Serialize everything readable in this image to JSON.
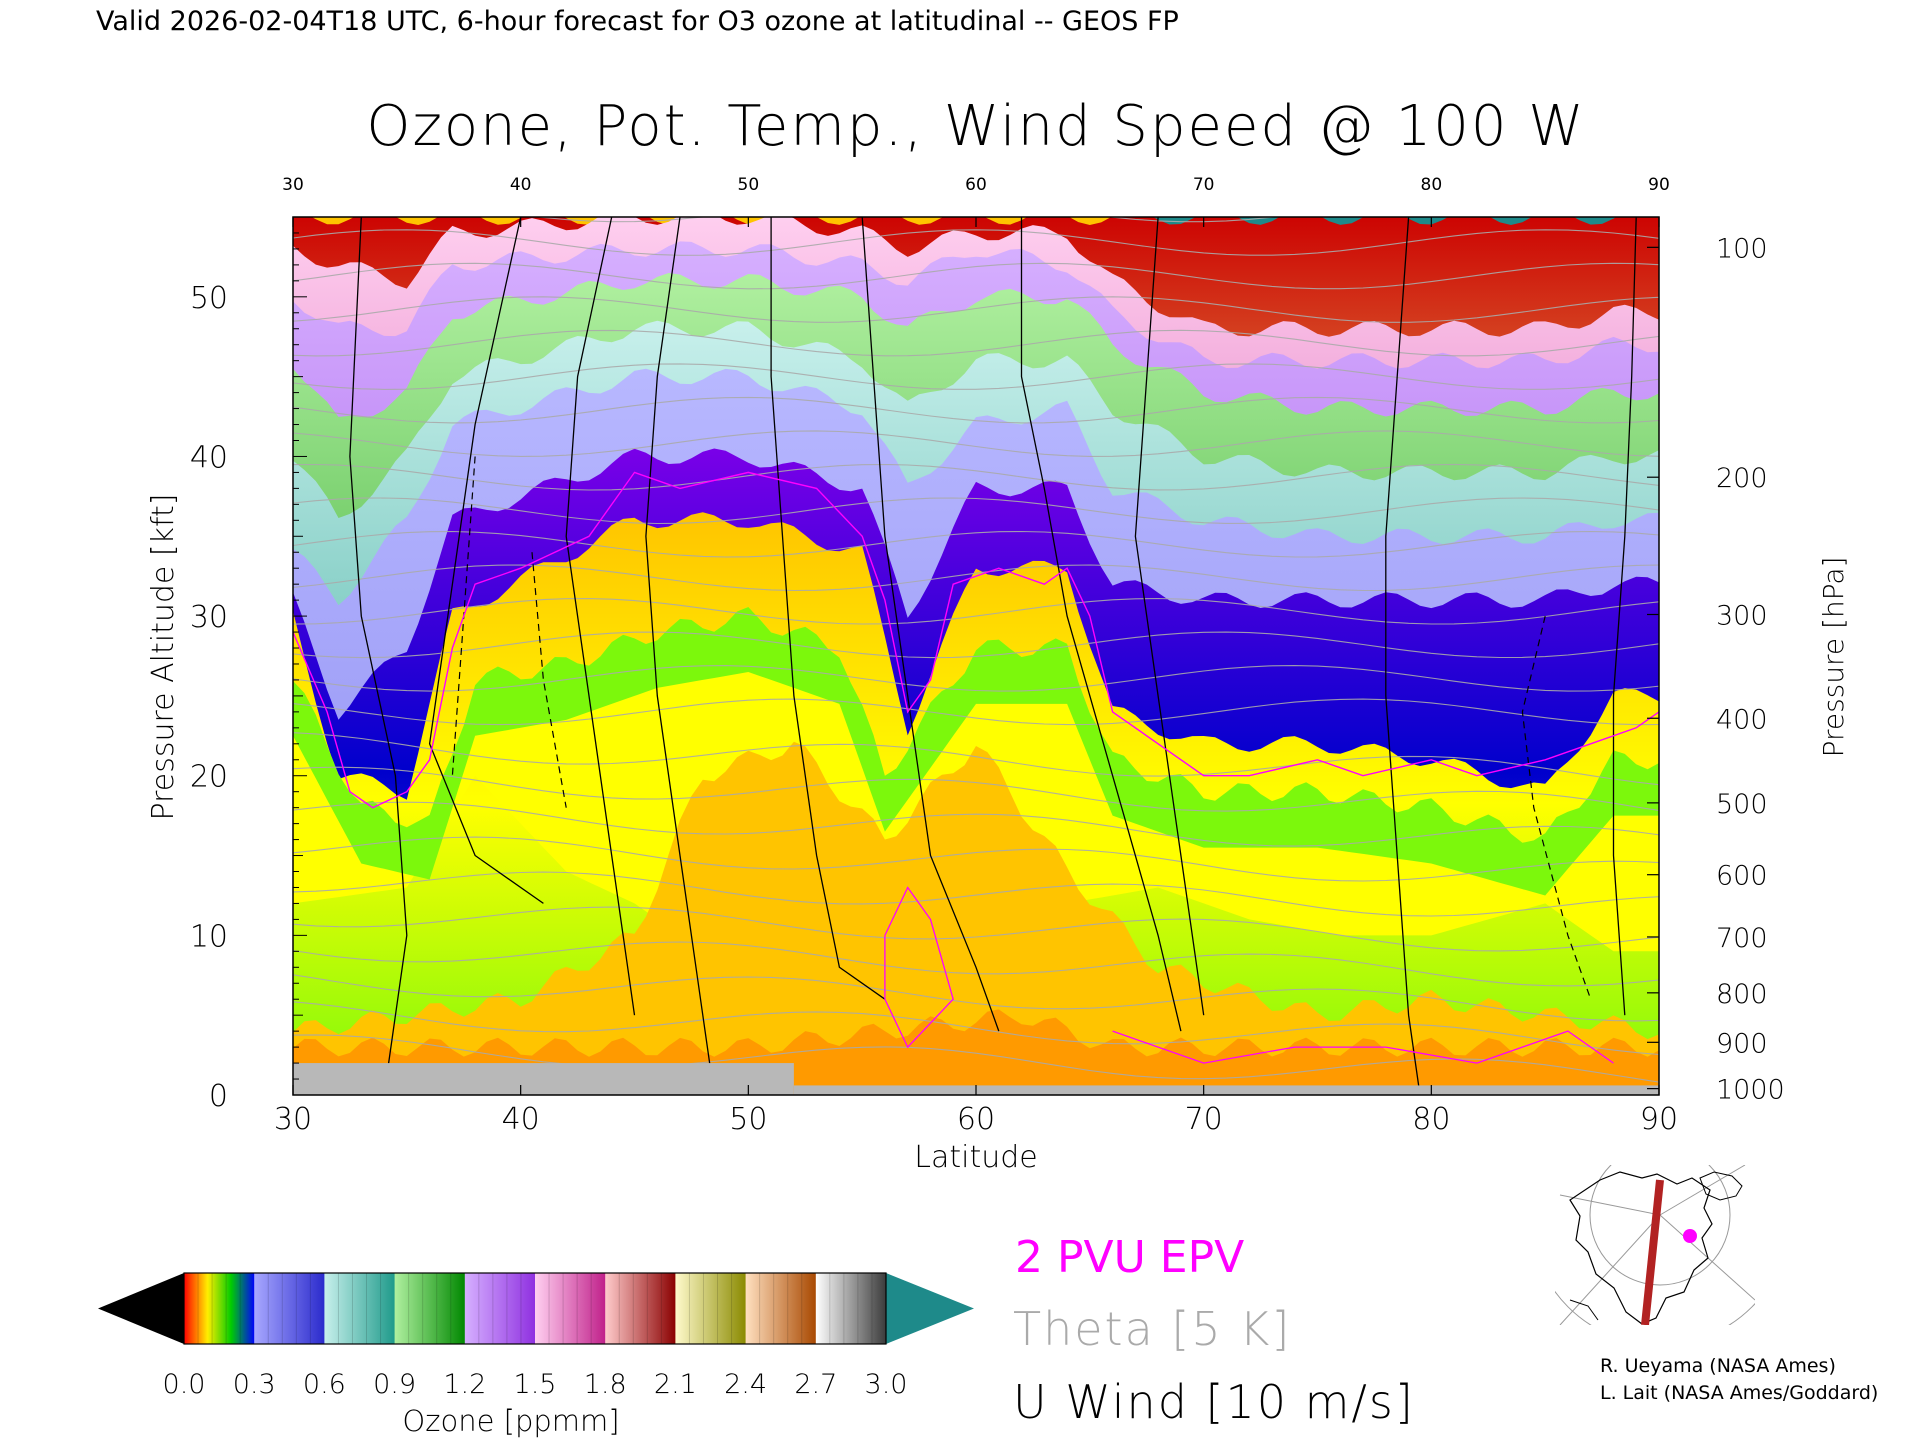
{
  "header": {
    "valid_line": "Valid 2026-02-04T18 UTC, 6-hour forecast for O3 ozone at latitudinal -- GEOS FP"
  },
  "chart_data": {
    "type": "heatmap",
    "title": "Ozone, Pot. Temp., Wind Speed @ 100 W",
    "xlabel": "Latitude",
    "ylabel_left": "Pressure Altitude [kft]",
    "ylabel_right": "Pressure [hPa]",
    "xlim": [
      30,
      90
    ],
    "ylim": [
      0,
      55
    ],
    "x_ticks": [
      30,
      40,
      50,
      60,
      70,
      80,
      90
    ],
    "top_x_ticks": [
      30,
      40,
      50,
      60,
      70,
      80,
      90
    ],
    "y_ticks": [
      0,
      10,
      20,
      30,
      40,
      50
    ],
    "pressure_ticks": [
      {
        "label": "100",
        "kft": 53.1
      },
      {
        "label": "200",
        "kft": 38.7
      },
      {
        "label": "300",
        "kft": 30.1
      },
      {
        "label": "400",
        "kft": 23.6
      },
      {
        "label": "500",
        "kft": 18.3
      },
      {
        "label": "600",
        "kft": 13.8
      },
      {
        "label": "700",
        "kft": 9.9
      },
      {
        "label": "800",
        "kft": 6.4
      },
      {
        "label": "900",
        "kft": 3.3
      },
      {
        "label": "1000",
        "kft": 0.4
      }
    ],
    "ozone_bands": [
      {
        "name": "tropospheric",
        "colors": [
          "#ffc400",
          "#ffff00",
          "#7cf80c"
        ],
        "top_kft": [
          [
            30,
            30
          ],
          [
            32,
            20
          ],
          [
            35,
            19
          ],
          [
            37,
            30
          ],
          [
            45,
            36
          ],
          [
            50,
            36
          ],
          [
            55,
            34
          ],
          [
            57,
            23
          ],
          [
            60,
            33
          ],
          [
            64,
            33
          ],
          [
            66,
            24
          ],
          [
            70,
            22
          ],
          [
            75,
            22
          ],
          [
            80,
            21
          ],
          [
            85,
            19
          ],
          [
            88,
            25
          ],
          [
            90,
            25
          ]
        ]
      },
      {
        "name": "purple-blue",
        "colors": [
          "#7a00e8",
          "#0000cc",
          "#4444ee"
        ],
        "top_kft": [
          [
            30,
            31
          ],
          [
            32,
            24
          ],
          [
            35,
            28
          ],
          [
            37,
            36
          ],
          [
            45,
            40
          ],
          [
            50,
            40
          ],
          [
            55,
            38
          ],
          [
            57,
            30
          ],
          [
            60,
            38
          ],
          [
            64,
            38
          ],
          [
            66,
            32
          ],
          [
            70,
            31
          ],
          [
            75,
            31
          ],
          [
            80,
            31
          ],
          [
            85,
            31
          ],
          [
            88,
            32
          ],
          [
            90,
            32
          ]
        ]
      },
      {
        "name": "lavender",
        "colors": [
          "#b8b8ff",
          "#8888f0"
        ],
        "top_kft": [
          [
            30,
            34
          ],
          [
            32,
            31
          ],
          [
            35,
            36
          ],
          [
            37,
            42
          ],
          [
            45,
            45
          ],
          [
            50,
            45
          ],
          [
            55,
            43
          ],
          [
            57,
            38
          ],
          [
            60,
            42
          ],
          [
            64,
            43
          ],
          [
            66,
            38
          ],
          [
            70,
            36
          ],
          [
            75,
            35
          ],
          [
            80,
            35
          ],
          [
            85,
            35
          ],
          [
            88,
            36
          ],
          [
            90,
            36
          ]
        ]
      },
      {
        "name": "teal",
        "colors": [
          "#c8f0ec",
          "#1e9a8a"
        ],
        "top_kft": [
          [
            30,
            40
          ],
          [
            32,
            36
          ],
          [
            35,
            40
          ],
          [
            37,
            45
          ],
          [
            45,
            48
          ],
          [
            50,
            48
          ],
          [
            55,
            46
          ],
          [
            57,
            43
          ],
          [
            60,
            46
          ],
          [
            64,
            46
          ],
          [
            66,
            43
          ],
          [
            70,
            40
          ],
          [
            75,
            39
          ],
          [
            80,
            39
          ],
          [
            85,
            39
          ],
          [
            88,
            40
          ],
          [
            90,
            40
          ]
        ]
      },
      {
        "name": "green",
        "colors": [
          "#b0f0a0",
          "#008800"
        ],
        "top_kft": [
          [
            30,
            46
          ],
          [
            32,
            42
          ],
          [
            35,
            44
          ],
          [
            37,
            49
          ],
          [
            45,
            51
          ],
          [
            50,
            51
          ],
          [
            55,
            50
          ],
          [
            57,
            48
          ],
          [
            60,
            50
          ],
          [
            64,
            50
          ],
          [
            66,
            47
          ],
          [
            70,
            44
          ],
          [
            75,
            43
          ],
          [
            80,
            43
          ],
          [
            85,
            43
          ],
          [
            88,
            44
          ],
          [
            90,
            44
          ]
        ]
      },
      {
        "name": "violet",
        "colors": [
          "#d6b0ff",
          "#8f30e0"
        ],
        "top_kft": [
          [
            30,
            50
          ],
          [
            32,
            48
          ],
          [
            35,
            48
          ],
          [
            37,
            52
          ],
          [
            45,
            53
          ],
          [
            50,
            53
          ],
          [
            55,
            52
          ],
          [
            57,
            51
          ],
          [
            60,
            53
          ],
          [
            64,
            52
          ],
          [
            66,
            49
          ],
          [
            70,
            46
          ],
          [
            75,
            46
          ],
          [
            80,
            46
          ],
          [
            85,
            46
          ],
          [
            88,
            47
          ],
          [
            90,
            47
          ]
        ]
      },
      {
        "name": "pink-magenta",
        "colors": [
          "#ffd0f0",
          "#c0208a"
        ],
        "top_kft": [
          [
            30,
            53
          ],
          [
            32,
            52
          ],
          [
            35,
            51
          ],
          [
            37,
            54
          ],
          [
            45,
            55
          ],
          [
            50,
            55
          ],
          [
            55,
            54
          ],
          [
            57,
            53
          ],
          [
            60,
            54
          ],
          [
            64,
            54
          ],
          [
            66,
            51
          ],
          [
            70,
            48
          ],
          [
            75,
            48
          ],
          [
            80,
            48
          ],
          [
            85,
            48
          ],
          [
            88,
            49
          ],
          [
            90,
            49
          ]
        ]
      },
      {
        "name": "red-yellow-white",
        "colors": [
          "#cc0000",
          "#e8e070",
          "#ffffff"
        ],
        "top_kft": [
          [
            30,
            55
          ],
          [
            90,
            55
          ]
        ]
      },
      {
        "name": "high-teal",
        "colors": [
          "#1e8a8a"
        ],
        "top_kft": [
          [
            66,
            55
          ],
          [
            90,
            55
          ]
        ]
      }
    ],
    "surface_gray_segments": [
      [
        30,
        52,
        2.0
      ],
      [
        52,
        90,
        0.6
      ]
    ]
  },
  "legend": {
    "epv_label": "2 PVU EPV",
    "theta_label": "Theta [5 K]",
    "wind_label": "U Wind [10 m/s]",
    "colors": {
      "epv": "#ff00ff",
      "theta": "#aaaaaa",
      "wind": "#000000"
    }
  },
  "colorbar": {
    "label": "Ozone [ppmm]",
    "ticks": [
      "0.0",
      "0.3",
      "0.6",
      "0.9",
      "1.2",
      "1.5",
      "1.8",
      "2.1",
      "2.4",
      "2.7",
      "3.0"
    ],
    "segments": [
      [
        "#ff0000",
        "#ffee00",
        "#00cc00",
        "#0000ff"
      ],
      [
        "#a8a8ff",
        "#2a2acc"
      ],
      [
        "#c8f0ec",
        "#1e9a8a"
      ],
      [
        "#b0f0a0",
        "#008800"
      ],
      [
        "#d6b0ff",
        "#8f30e0"
      ],
      [
        "#ffd0f0",
        "#c0208a"
      ],
      [
        "#ffcccc",
        "#8a0000"
      ],
      [
        "#fffacc",
        "#8a8a00"
      ],
      [
        "#ffe0c0",
        "#a84800"
      ],
      [
        "#ffffff",
        "#3a3a3a"
      ]
    ],
    "low_arrow_color": "#000000",
    "high_arrow_color": "#1e8a8a"
  },
  "credits": {
    "line1": "R. Ueyama (NASA Ames)",
    "line2": "L. Lait (NASA Ames/Goddard)"
  },
  "inset_map": {
    "marker_color": "#ff00ff",
    "transect_color": "#b22222"
  }
}
